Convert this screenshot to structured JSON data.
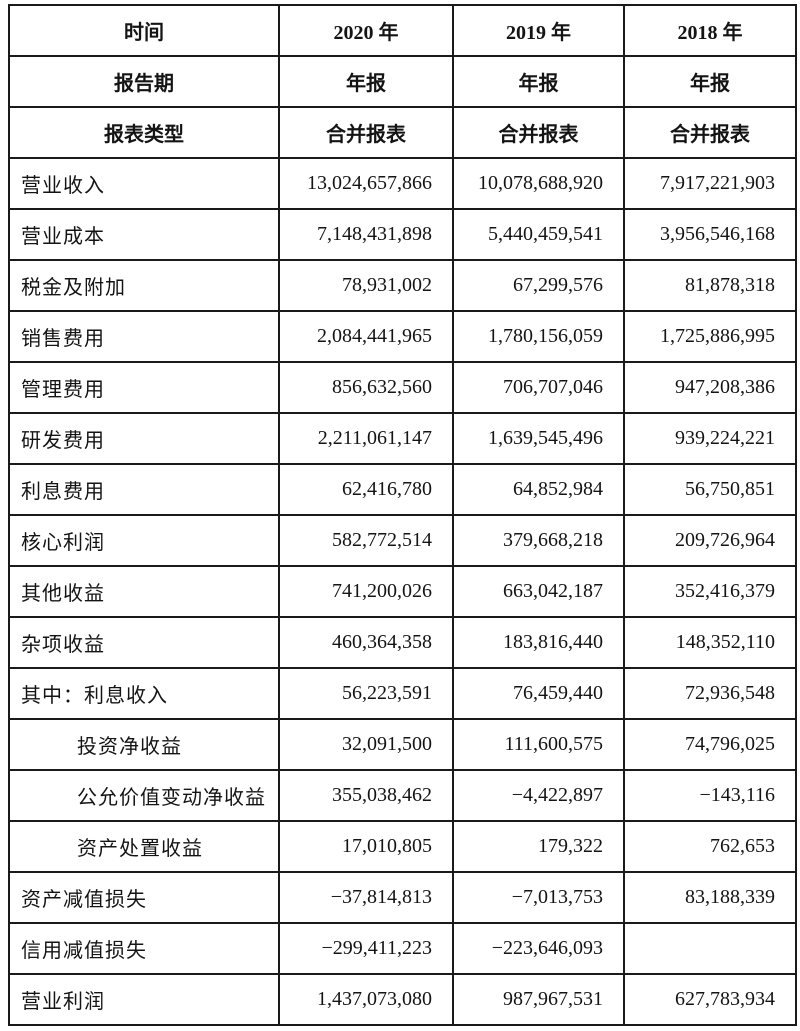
{
  "table": {
    "columns": [
      "label",
      "y2020",
      "y2019",
      "y2018"
    ],
    "header_rows": [
      {
        "label": "时间",
        "values": [
          "2020 年",
          "2019 年",
          "2018 年"
        ]
      },
      {
        "label": "报告期",
        "values": [
          "年报",
          "年报",
          "年报"
        ]
      },
      {
        "label": "报表类型",
        "values": [
          "合并报表",
          "合并报表",
          "合并报表"
        ]
      }
    ],
    "body_rows": [
      {
        "label": "营业收入",
        "indent": 0,
        "values": [
          "13,024,657,866",
          "10,078,688,920",
          "7,917,221,903"
        ]
      },
      {
        "label": "营业成本",
        "indent": 0,
        "values": [
          "7,148,431,898",
          "5,440,459,541",
          "3,956,546,168"
        ]
      },
      {
        "label": "税金及附加",
        "indent": 0,
        "values": [
          "78,931,002",
          "67,299,576",
          "81,878,318"
        ]
      },
      {
        "label": "销售费用",
        "indent": 0,
        "values": [
          "2,084,441,965",
          "1,780,156,059",
          "1,725,886,995"
        ]
      },
      {
        "label": "管理费用",
        "indent": 0,
        "values": [
          "856,632,560",
          "706,707,046",
          "947,208,386"
        ]
      },
      {
        "label": "研发费用",
        "indent": 0,
        "values": [
          "2,211,061,147",
          "1,639,545,496",
          "939,224,221"
        ]
      },
      {
        "label": "利息费用",
        "indent": 0,
        "values": [
          "62,416,780",
          "64,852,984",
          "56,750,851"
        ]
      },
      {
        "label": "核心利润",
        "indent": 0,
        "values": [
          "582,772,514",
          "379,668,218",
          "209,726,964"
        ]
      },
      {
        "label": "其他收益",
        "indent": 0,
        "values": [
          "741,200,026",
          "663,042,187",
          "352,416,379"
        ]
      },
      {
        "label": "杂项收益",
        "indent": 0,
        "values": [
          "460,364,358",
          "183,816,440",
          "148,352,110"
        ]
      },
      {
        "label": "其中：利息收入",
        "indent": 0,
        "values": [
          "56,223,591",
          "76,459,440",
          "72,936,548"
        ]
      },
      {
        "label": "投资净收益",
        "indent": 1,
        "values": [
          "32,091,500",
          "111,600,575",
          "74,796,025"
        ]
      },
      {
        "label": "公允价值变动净收益",
        "indent": 1,
        "values": [
          "355,038,462",
          "−4,422,897",
          "−143,116"
        ]
      },
      {
        "label": "资产处置收益",
        "indent": 1,
        "values": [
          "17,010,805",
          "179,322",
          "762,653"
        ]
      },
      {
        "label": "资产减值损失",
        "indent": 0,
        "values": [
          "−37,814,813",
          "−7,013,753",
          "83,188,339"
        ]
      },
      {
        "label": "信用减值损失",
        "indent": 0,
        "values": [
          "−299,411,223",
          "−223,646,093",
          ""
        ]
      },
      {
        "label": "营业利润",
        "indent": 0,
        "values": [
          "1,437,073,080",
          "987,967,531",
          "627,783,934"
        ]
      }
    ]
  }
}
